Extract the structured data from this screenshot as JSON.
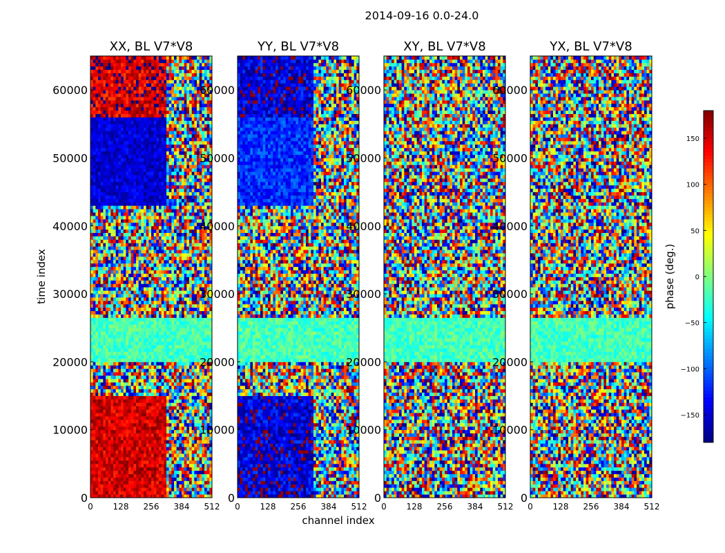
{
  "chart_data": {
    "type": "heatmap",
    "suptitle": "2014-09-16 0.0-24.0",
    "xlabel": "channel index",
    "ylabel": "time index",
    "x_ticks": [
      0,
      128,
      256,
      384,
      512
    ],
    "x_range": [
      0,
      512
    ],
    "y_ticks": [
      0,
      10000,
      20000,
      30000,
      40000,
      50000,
      60000
    ],
    "y_range": [
      0,
      65000
    ],
    "panels": [
      {
        "title": "XX, BL V7*V8",
        "zones": [
          {
            "y0": 0,
            "y1": 15000,
            "x0": 0,
            "x1": 320,
            "phase_mean": 150,
            "noise": 30
          },
          {
            "y0": 0,
            "y1": 15000,
            "x0": 320,
            "x1": 512,
            "phase_mean": 0,
            "noise": 180
          },
          {
            "y0": 15000,
            "y1": 20000,
            "x0": 0,
            "x1": 512,
            "phase_mean": 0,
            "noise": 180
          },
          {
            "y0": 20000,
            "y1": 26500,
            "x0": 0,
            "x1": 512,
            "phase_mean": -20,
            "noise": 25
          },
          {
            "y0": 26500,
            "y1": 43000,
            "x0": 0,
            "x1": 512,
            "phase_mean": 0,
            "noise": 180
          },
          {
            "y0": 43000,
            "y1": 56000,
            "x0": 0,
            "x1": 320,
            "phase_mean": -150,
            "noise": 25
          },
          {
            "y0": 43000,
            "y1": 56000,
            "x0": 320,
            "x1": 512,
            "phase_mean": 0,
            "noise": 180
          },
          {
            "y0": 56000,
            "y1": 65000,
            "x0": 0,
            "x1": 320,
            "phase_mean": 150,
            "noise": 40
          },
          {
            "y0": 56000,
            "y1": 65000,
            "x0": 320,
            "x1": 512,
            "phase_mean": 0,
            "noise": 180
          }
        ]
      },
      {
        "title": "YY, BL V7*V8",
        "zones": [
          {
            "y0": 0,
            "y1": 15000,
            "x0": 0,
            "x1": 320,
            "phase_mean": -150,
            "noise": 40
          },
          {
            "y0": 0,
            "y1": 15000,
            "x0": 320,
            "x1": 512,
            "phase_mean": 0,
            "noise": 180
          },
          {
            "y0": 15000,
            "y1": 20000,
            "x0": 0,
            "x1": 512,
            "phase_mean": 0,
            "noise": 180
          },
          {
            "y0": 20000,
            "y1": 26500,
            "x0": 0,
            "x1": 512,
            "phase_mean": -20,
            "noise": 25
          },
          {
            "y0": 26500,
            "y1": 43000,
            "x0": 0,
            "x1": 512,
            "phase_mean": 0,
            "noise": 180
          },
          {
            "y0": 43000,
            "y1": 56000,
            "x0": 0,
            "x1": 320,
            "phase_mean": -120,
            "noise": 30
          },
          {
            "y0": 43000,
            "y1": 56000,
            "x0": 320,
            "x1": 512,
            "phase_mean": 0,
            "noise": 180
          },
          {
            "y0": 56000,
            "y1": 65000,
            "x0": 0,
            "x1": 320,
            "phase_mean": -150,
            "noise": 40
          },
          {
            "y0": 56000,
            "y1": 65000,
            "x0": 320,
            "x1": 512,
            "phase_mean": 0,
            "noise": 180
          }
        ]
      },
      {
        "title": "XY, BL V7*V8",
        "zones": [
          {
            "y0": 0,
            "y1": 20000,
            "x0": 0,
            "x1": 512,
            "phase_mean": 0,
            "noise": 180
          },
          {
            "y0": 20000,
            "y1": 26500,
            "x0": 0,
            "x1": 512,
            "phase_mean": -20,
            "noise": 25
          },
          {
            "y0": 26500,
            "y1": 65000,
            "x0": 0,
            "x1": 512,
            "phase_mean": 0,
            "noise": 180
          }
        ]
      },
      {
        "title": "YX, BL V7*V8",
        "zones": [
          {
            "y0": 0,
            "y1": 20000,
            "x0": 0,
            "x1": 512,
            "phase_mean": 0,
            "noise": 180
          },
          {
            "y0": 20000,
            "y1": 26500,
            "x0": 0,
            "x1": 512,
            "phase_mean": -20,
            "noise": 25
          },
          {
            "y0": 26500,
            "y1": 65000,
            "x0": 0,
            "x1": 512,
            "phase_mean": 0,
            "noise": 180
          }
        ]
      }
    ],
    "colorbar": {
      "label": "phase (deg.)",
      "range": [
        -180,
        180
      ],
      "ticks": [
        150,
        100,
        50,
        0,
        -50,
        -100,
        -150
      ],
      "tick_labels": [
        "150",
        "100",
        "50",
        "0",
        "−50",
        "−100",
        "−150"
      ],
      "colormap": "jet"
    }
  }
}
